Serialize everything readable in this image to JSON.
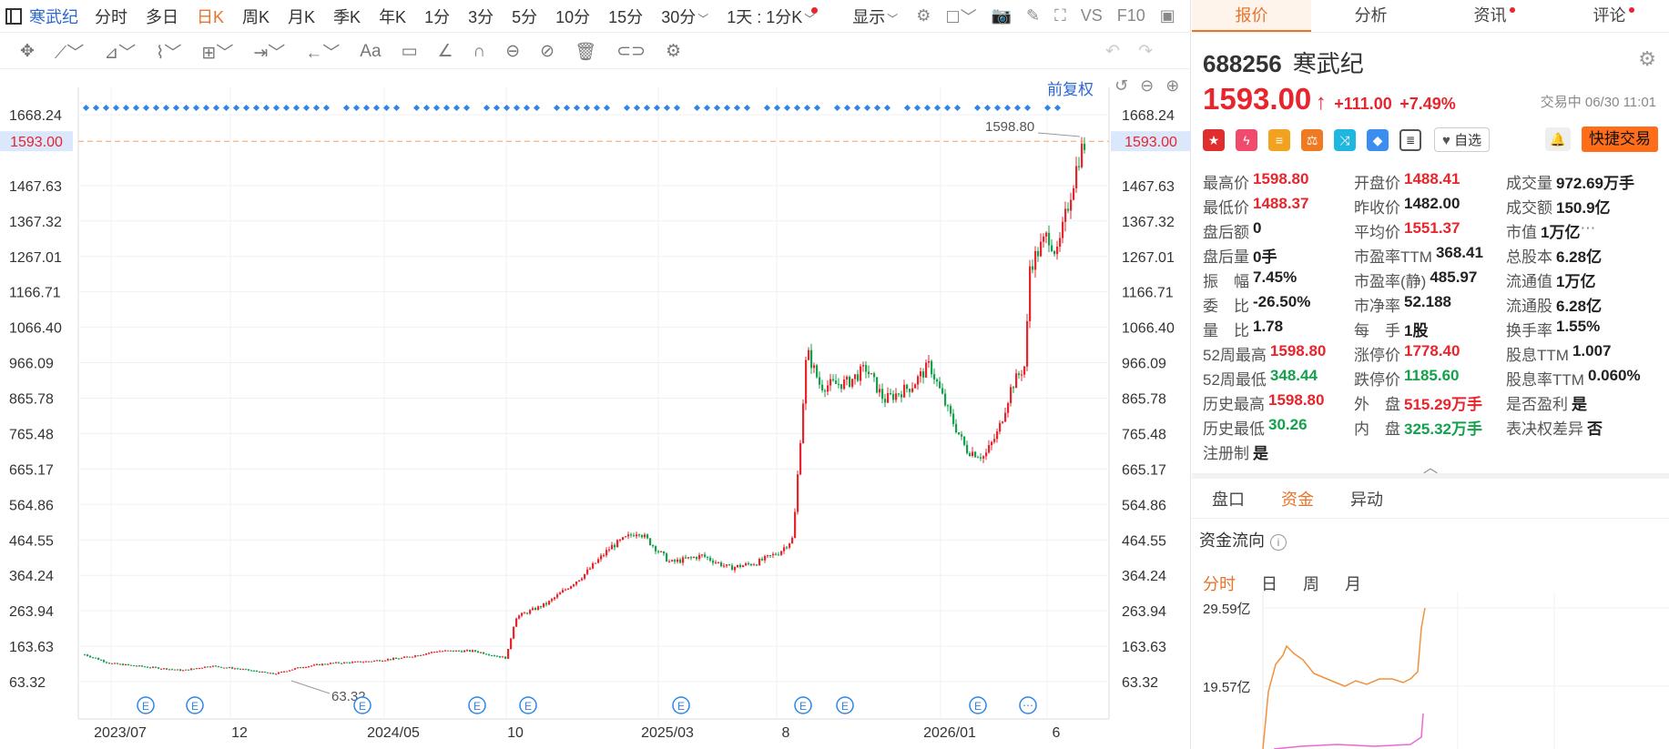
{
  "toolbar": {
    "symbol": "寒武纪",
    "periods": [
      "分时",
      "多日",
      "日K",
      "周K",
      "月K",
      "季K",
      "年K",
      "1分",
      "3分",
      "5分",
      "10分",
      "15分"
    ],
    "active_period": "日K",
    "minute_select": "30分",
    "one_day": "1天 : 1分K",
    "display": "显示",
    "vs": "VS",
    "f10": "F10"
  },
  "chart": {
    "restore_label": "前复权",
    "price_axis": [
      "1668.24",
      "1467.63",
      "1367.32",
      "1267.01",
      "1166.71",
      "1066.40",
      "966.09",
      "865.78",
      "765.48",
      "665.17",
      "564.86",
      "464.55",
      "364.24",
      "263.94",
      "163.63",
      "63.32"
    ],
    "current_price_label": "1593.00",
    "high_marker": "1598.80",
    "low_marker": "63.32",
    "date_axis": [
      "2023/07",
      "12",
      "2024/05",
      "10",
      "2025/03",
      "8",
      "2026/01",
      "6"
    ],
    "event_badge": "E",
    "colors": {
      "up": "#e8242c",
      "down": "#14a04c",
      "dot": "#2f86e6",
      "dash": "#f0a26a"
    }
  },
  "quote": {
    "tabs": [
      "报价",
      "分析",
      "资讯",
      "评论"
    ],
    "active_tab": "报价",
    "code": "688256",
    "name": "寒武纪",
    "price": "1593.00",
    "change": "+111.00",
    "change_pct": "+7.49%",
    "status": "交易中 06/30 11:01",
    "fav_label": "自选",
    "quick_trade": "快捷交易"
  },
  "stats": [
    [
      {
        "k": "最高价",
        "v": "1598.80",
        "c": "red"
      },
      {
        "k": "开盘价",
        "v": "1488.41",
        "c": "red"
      },
      {
        "k": "成交量",
        "v": "972.69万手",
        "c": "dark"
      }
    ],
    [
      {
        "k": "最低价",
        "v": "1488.37",
        "c": "red"
      },
      {
        "k": "昨收价",
        "v": "1482.00",
        "c": "dark"
      },
      {
        "k": "成交额",
        "v": "150.9亿",
        "c": "dark"
      }
    ],
    [
      {
        "k": "盘后额",
        "v": "0",
        "c": "dark"
      },
      {
        "k": "平均价",
        "v": "1551.37",
        "c": "red"
      },
      {
        "k": "市值",
        "v": "1万亿",
        "c": "dark"
      }
    ],
    [
      {
        "k": "盘后量",
        "v": "0手",
        "c": "dark"
      },
      {
        "k": "市盈率TTM",
        "v": "368.41",
        "c": "dark"
      },
      {
        "k": "总股本",
        "v": "6.28亿",
        "c": "dark"
      }
    ],
    [
      {
        "k": "振　幅",
        "v": "7.45%",
        "c": "dark"
      },
      {
        "k": "市盈率(静)",
        "v": "485.97",
        "c": "dark"
      },
      {
        "k": "流通值",
        "v": "1万亿",
        "c": "dark"
      }
    ],
    [
      {
        "k": "委　比",
        "v": "-26.50%",
        "c": "dark"
      },
      {
        "k": "市净率",
        "v": "52.188",
        "c": "dark"
      },
      {
        "k": "流通股",
        "v": "6.28亿",
        "c": "dark"
      }
    ],
    [
      {
        "k": "量　比",
        "v": "1.78",
        "c": "dark"
      },
      {
        "k": "每　手",
        "v": "1股",
        "c": "dark"
      },
      {
        "k": "换手率",
        "v": "1.55%",
        "c": "dark"
      }
    ],
    [
      {
        "k": "52周最高",
        "v": "1598.80",
        "c": "red"
      },
      {
        "k": "涨停价",
        "v": "1778.40",
        "c": "red"
      },
      {
        "k": "股息TTM",
        "v": "1.007",
        "c": "dark"
      }
    ],
    [
      {
        "k": "52周最低",
        "v": "348.44",
        "c": "green"
      },
      {
        "k": "跌停价",
        "v": "1185.60",
        "c": "green"
      },
      {
        "k": "股息率TTM",
        "v": "0.060%",
        "c": "dark"
      }
    ],
    [
      {
        "k": "历史最高",
        "v": "1598.80",
        "c": "red"
      },
      {
        "k": "外　盘",
        "v": "515.29万手",
        "c": "red"
      },
      {
        "k": "是否盈利",
        "v": "是",
        "c": "dark"
      }
    ],
    [
      {
        "k": "历史最低",
        "v": "30.26",
        "c": "green"
      },
      {
        "k": "内　盘",
        "v": "325.32万手",
        "c": "green"
      },
      {
        "k": "表决权差异",
        "v": "否",
        "c": "dark"
      }
    ],
    [
      {
        "k": "注册制",
        "v": "是",
        "c": "dark"
      }
    ]
  ],
  "sub_tabs": [
    "盘口",
    "资金",
    "异动"
  ],
  "active_sub_tab": "资金",
  "flow": {
    "title": "资金流向",
    "ranges": [
      "分时",
      "日",
      "周",
      "月"
    ],
    "active_range": "分时",
    "y_labels": [
      "29.59亿",
      "19.57亿"
    ]
  }
}
